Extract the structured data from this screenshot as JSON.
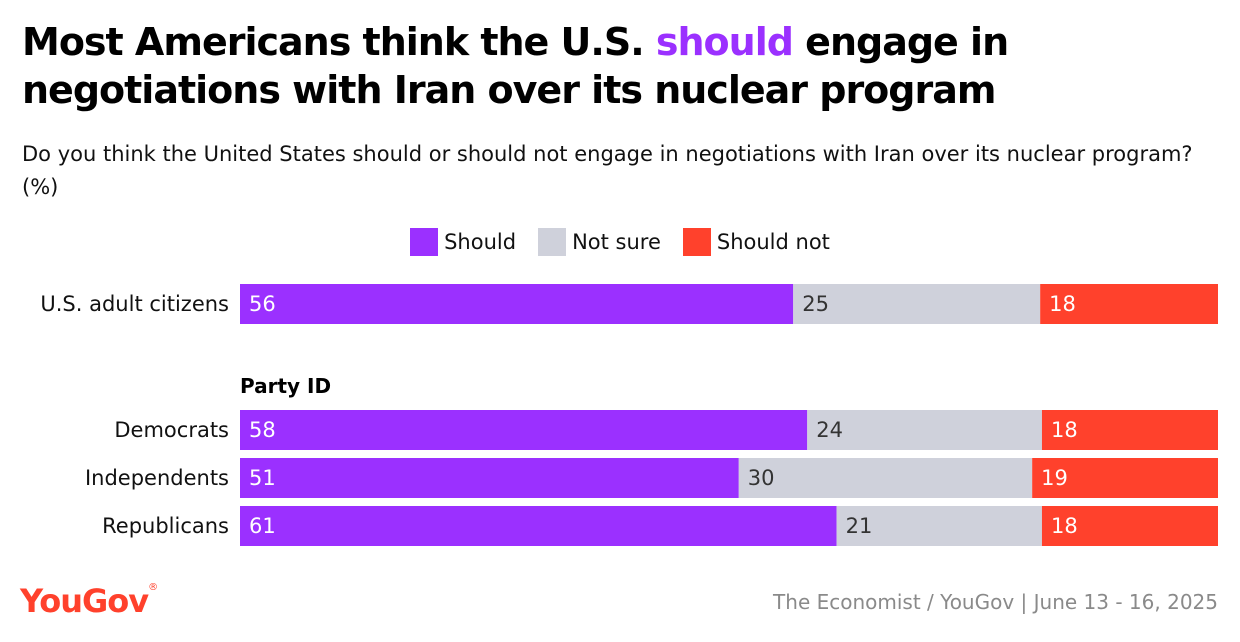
{
  "title": {
    "part1": "Most Americans think the U.S. ",
    "highlight": "should",
    "part2": " engage in negotiations with Iran over its nuclear program"
  },
  "subtitle": "Do you think the United States should or should not engage in negotiations with Iran over its nuclear program? (%)",
  "colors": {
    "should": "#9b30ff",
    "not_sure": "#cfd1db",
    "should_not": "#ff412c",
    "label_on_dark": "#ffffff",
    "label_on_light": "#333333"
  },
  "legend": [
    {
      "label": "Should",
      "color": "#9b30ff"
    },
    {
      "label": "Not sure",
      "color": "#cfd1db"
    },
    {
      "label": "Should not",
      "color": "#ff412c"
    }
  ],
  "chart_data": {
    "type": "bar",
    "orientation": "horizontal",
    "stacked": true,
    "categories": [
      "U.S. adult citizens",
      "Democrats",
      "Independents",
      "Republicans"
    ],
    "group_label": "Party ID",
    "series": [
      {
        "name": "Should",
        "values": [
          56,
          58,
          51,
          61
        ]
      },
      {
        "name": "Not sure",
        "values": [
          25,
          24,
          30,
          21
        ]
      },
      {
        "name": "Should not",
        "values": [
          18,
          18,
          19,
          18
        ]
      }
    ],
    "xlim": [
      0,
      100
    ],
    "legend_position": "top-center",
    "grid": false
  },
  "footer": {
    "logo": "YouGov",
    "source": "The Economist / YouGov | June 13 - 16, 2025"
  }
}
